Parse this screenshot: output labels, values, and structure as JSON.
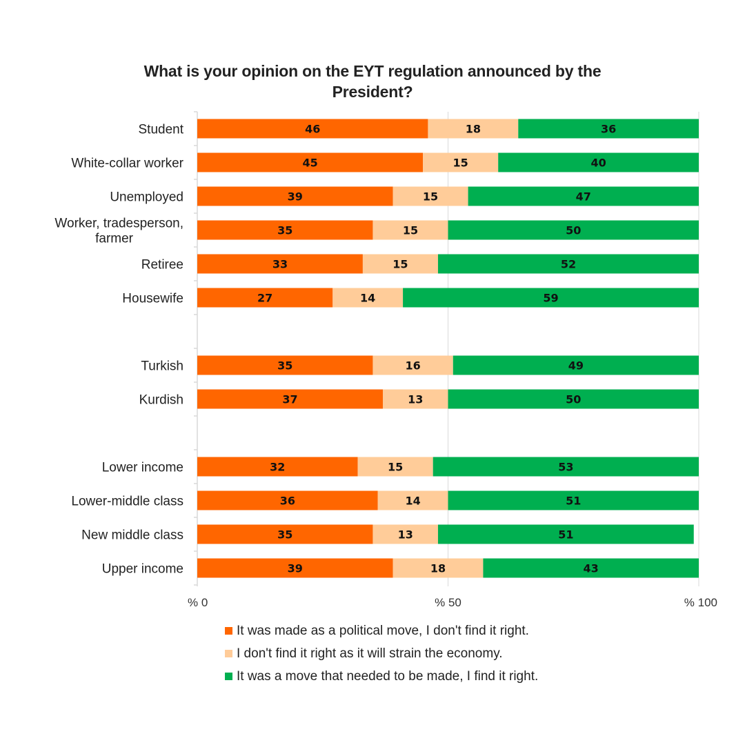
{
  "chart_data": {
    "type": "bar",
    "orientation": "horizontal",
    "stacked": true,
    "title": "What is your opinion on the EYT regulation announced by the President?",
    "title_lines": [
      "What is your opinion on the EYT regulation announced by the",
      "President?"
    ],
    "xlabel": "",
    "ylabel": "",
    "xlim": [
      0,
      100
    ],
    "x_ticks": [
      0,
      50,
      100
    ],
    "x_tick_labels": [
      "% 0",
      "% 50",
      "% 100"
    ],
    "grid": "vertical at 50 and 100",
    "legend_position": "bottom",
    "categories": [
      "Student",
      "White-collar worker",
      "Unemployed",
      "Worker, tradesperson, farmer",
      "Retiree",
      "Housewife",
      "",
      "Turkish",
      "Kurdish",
      "",
      "Lower income",
      "Lower-middle class",
      "New middle class",
      "Upper income"
    ],
    "category_label_lines": [
      [
        "Student"
      ],
      [
        "White-collar worker"
      ],
      [
        "Unemployed"
      ],
      [
        "Worker, tradesperson,",
        "farmer"
      ],
      [
        "Retiree"
      ],
      [
        "Housewife"
      ],
      [],
      [
        "Turkish"
      ],
      [
        "Kurdish"
      ],
      [],
      [
        "Lower income"
      ],
      [
        "Lower-middle class"
      ],
      [
        "New middle class"
      ],
      [
        "Upper income"
      ]
    ],
    "series": [
      {
        "name": "It was made as a political move, I don't find it right.",
        "color": "#FF6600",
        "values": [
          46,
          45,
          39,
          35,
          33,
          27,
          null,
          35,
          37,
          null,
          32,
          36,
          35,
          39
        ]
      },
      {
        "name": "I don't find it right as it will strain the economy.",
        "color": "#FFCC99",
        "values": [
          18,
          15,
          15,
          15,
          15,
          14,
          null,
          16,
          13,
          null,
          15,
          14,
          13,
          18
        ]
      },
      {
        "name": "It was a move that needed to be made, I find it right.",
        "color": "#00AF50",
        "values": [
          36,
          40,
          47,
          50,
          52,
          59,
          null,
          49,
          50,
          null,
          53,
          51,
          51,
          43
        ]
      }
    ]
  },
  "colors": {
    "axis": "#d9d9d9",
    "gridline": "#d9d9d9",
    "text": "#222222"
  }
}
